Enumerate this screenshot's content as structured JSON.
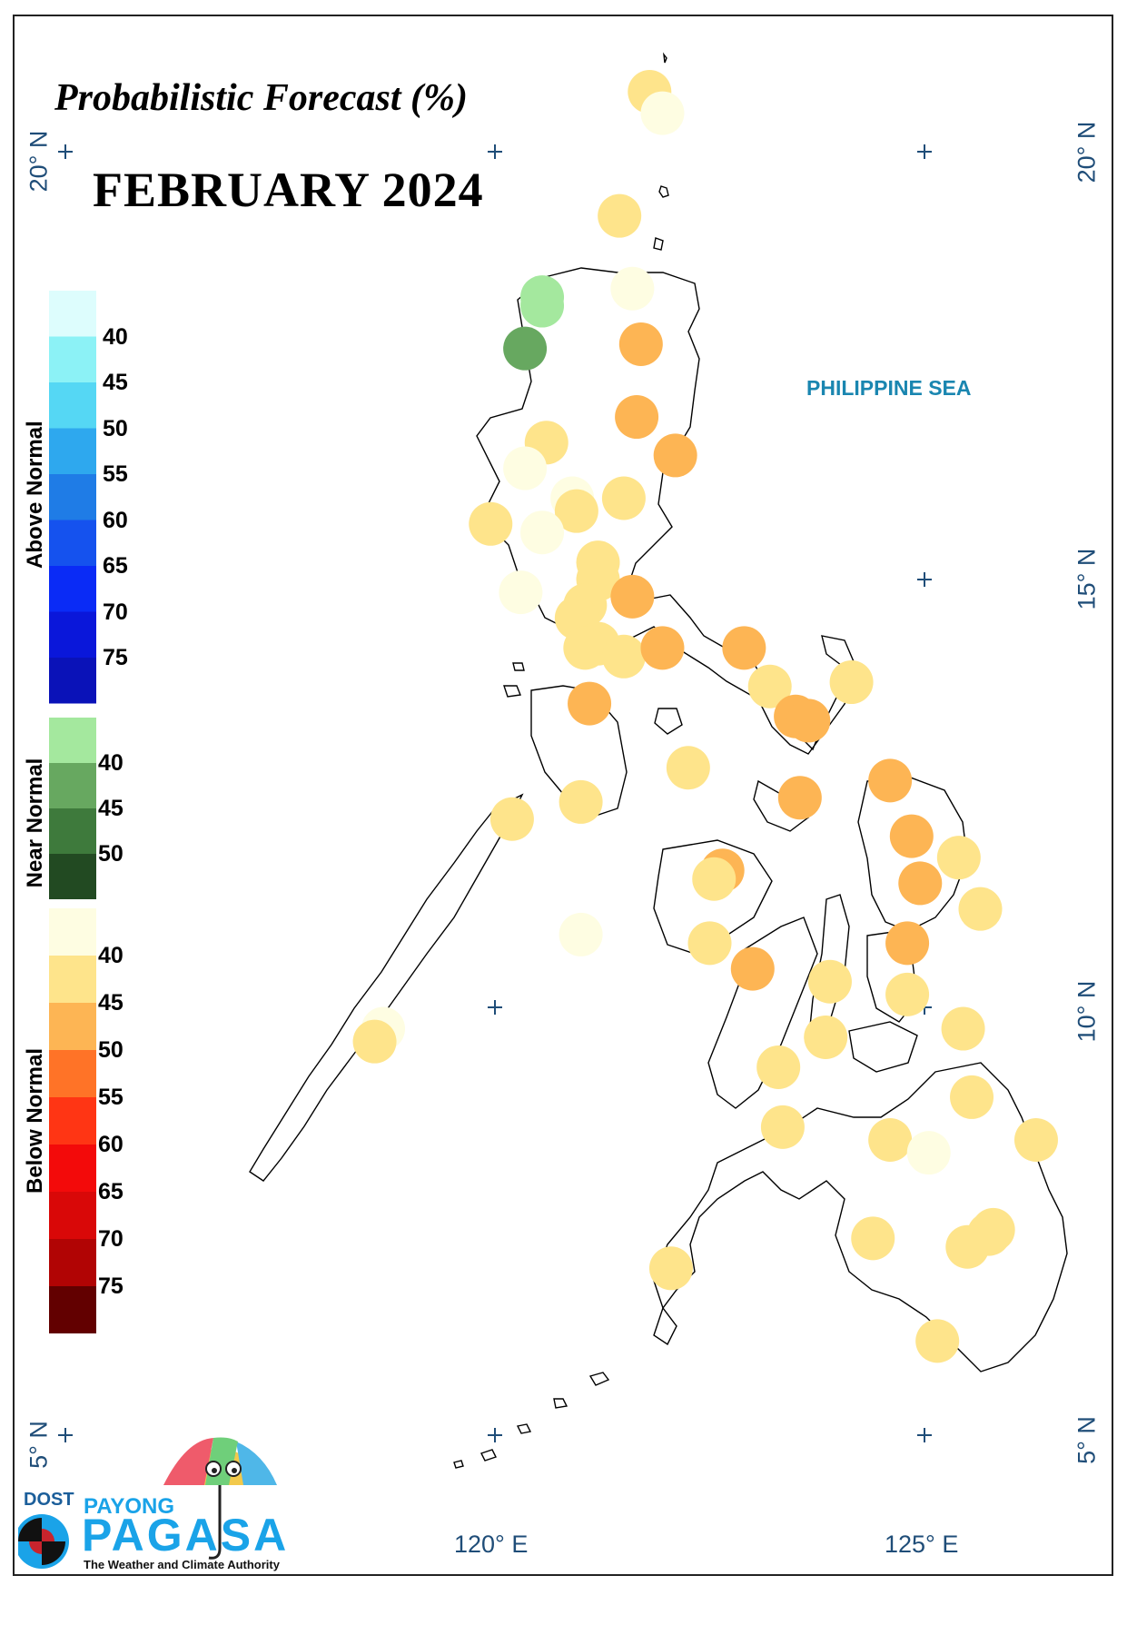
{
  "title": "Probabilistic Forecast (%)",
  "month": "FEBRUARY 2024",
  "sea_label": "PHILIPPINE SEA",
  "lat_labels": {
    "n20": "20° N",
    "n15": "15° N",
    "n10": "10° N",
    "n5": "5° N"
  },
  "lon_labels": {
    "e120": "120° E",
    "e125": "125° E"
  },
  "legend": {
    "above": {
      "title": "Above Normal",
      "ticks": [
        "40",
        "45",
        "50",
        "55",
        "60",
        "65",
        "70",
        "75"
      ],
      "colors": [
        "#ddfdfd",
        "#8cf2f6",
        "#55d7f4",
        "#2ea8ee",
        "#1f7ce6",
        "#1552ee",
        "#0a2bf6",
        "#0a17da",
        "#0a12b8"
      ]
    },
    "near": {
      "title": "Near Normal",
      "ticks": [
        "40",
        "45",
        "50"
      ],
      "colors": [
        "#a4e89e",
        "#67a860",
        "#3e7a3c",
        "#224a22"
      ]
    },
    "below": {
      "title": "Below Normal",
      "ticks": [
        "40",
        "45",
        "50",
        "55",
        "60",
        "65",
        "70",
        "75"
      ],
      "colors": [
        "#fefde2",
        "#fee48b",
        "#fdb554",
        "#ff7327",
        "#ff3514",
        "#f30a0a",
        "#d90808",
        "#b10404",
        "#620000"
      ]
    }
  },
  "logo": {
    "dost": "DOST",
    "payong": "PAYONG",
    "pagasa": "PAGASA",
    "tagline": "The Weather and Climate Authority"
  },
  "category_colors": {
    "B40": "#fefde2",
    "B45": "#fee48b",
    "B50": "#fdb554",
    "N40": "#a4e89e",
    "N45": "#67a860"
  },
  "stations": [
    {
      "lat": 20.7,
      "lon": 121.8,
      "cat": "B45"
    },
    {
      "lat": 20.45,
      "lon": 121.95,
      "cat": "B40"
    },
    {
      "lat": 19.25,
      "lon": 121.45,
      "cat": "B45"
    },
    {
      "lat": 18.4,
      "lon": 121.6,
      "cat": "B40"
    },
    {
      "lat": 18.3,
      "lon": 120.55,
      "cat": "N40"
    },
    {
      "lat": 18.2,
      "lon": 120.55,
      "cat": "N40"
    },
    {
      "lat": 17.7,
      "lon": 120.35,
      "cat": "N45"
    },
    {
      "lat": 17.75,
      "lon": 121.7,
      "cat": "B50"
    },
    {
      "lat": 16.9,
      "lon": 121.65,
      "cat": "B50"
    },
    {
      "lat": 16.6,
      "lon": 120.6,
      "cat": "B45"
    },
    {
      "lat": 16.45,
      "lon": 122.1,
      "cat": "B50"
    },
    {
      "lat": 16.3,
      "lon": 120.35,
      "cat": "B40"
    },
    {
      "lat": 15.95,
      "lon": 120.9,
      "cat": "B40"
    },
    {
      "lat": 15.95,
      "lon": 121.5,
      "cat": "B45"
    },
    {
      "lat": 15.8,
      "lon": 120.95,
      "cat": "B45"
    },
    {
      "lat": 15.65,
      "lon": 119.95,
      "cat": "B45"
    },
    {
      "lat": 15.55,
      "lon": 120.55,
      "cat": "B40"
    },
    {
      "lat": 15.2,
      "lon": 121.2,
      "cat": "B45"
    },
    {
      "lat": 15.0,
      "lon": 121.2,
      "cat": "B45"
    },
    {
      "lat": 14.8,
      "lon": 121.6,
      "cat": "B50"
    },
    {
      "lat": 14.85,
      "lon": 120.3,
      "cat": "B40"
    },
    {
      "lat": 14.7,
      "lon": 121.05,
      "cat": "B45"
    },
    {
      "lat": 14.55,
      "lon": 120.95,
      "cat": "B45"
    },
    {
      "lat": 14.25,
      "lon": 121.2,
      "cat": "B45"
    },
    {
      "lat": 14.2,
      "lon": 121.05,
      "cat": "B45"
    },
    {
      "lat": 14.1,
      "lon": 121.5,
      "cat": "B45"
    },
    {
      "lat": 14.2,
      "lon": 121.95,
      "cat": "B50"
    },
    {
      "lat": 14.2,
      "lon": 122.9,
      "cat": "B50"
    },
    {
      "lat": 13.75,
      "lon": 123.2,
      "cat": "B45"
    },
    {
      "lat": 13.8,
      "lon": 124.15,
      "cat": "B45"
    },
    {
      "lat": 13.4,
      "lon": 123.5,
      "cat": "B50"
    },
    {
      "lat": 13.35,
      "lon": 123.65,
      "cat": "B50"
    },
    {
      "lat": 13.55,
      "lon": 121.1,
      "cat": "B50"
    },
    {
      "lat": 12.8,
      "lon": 122.25,
      "cat": "B45"
    },
    {
      "lat": 12.65,
      "lon": 124.6,
      "cat": "B50"
    },
    {
      "lat": 12.45,
      "lon": 123.55,
      "cat": "B50"
    },
    {
      "lat": 12.4,
      "lon": 121.0,
      "cat": "B45"
    },
    {
      "lat": 12.2,
      "lon": 120.2,
      "cat": "B45"
    },
    {
      "lat": 12.0,
      "lon": 124.85,
      "cat": "B50"
    },
    {
      "lat": 11.75,
      "lon": 125.4,
      "cat": "B45"
    },
    {
      "lat": 11.6,
      "lon": 122.65,
      "cat": "B50"
    },
    {
      "lat": 11.5,
      "lon": 122.55,
      "cat": "B45"
    },
    {
      "lat": 11.45,
      "lon": 124.95,
      "cat": "B50"
    },
    {
      "lat": 11.15,
      "lon": 125.65,
      "cat": "B45"
    },
    {
      "lat": 10.85,
      "lon": 121.0,
      "cat": "B40"
    },
    {
      "lat": 10.75,
      "lon": 122.5,
      "cat": "B45"
    },
    {
      "lat": 10.75,
      "lon": 124.8,
      "cat": "B50"
    },
    {
      "lat": 10.45,
      "lon": 123.0,
      "cat": "B50"
    },
    {
      "lat": 10.3,
      "lon": 123.9,
      "cat": "B45"
    },
    {
      "lat": 10.15,
      "lon": 124.8,
      "cat": "B45"
    },
    {
      "lat": 9.75,
      "lon": 125.45,
      "cat": "B45"
    },
    {
      "lat": 9.75,
      "lon": 118.7,
      "cat": "B40"
    },
    {
      "lat": 9.6,
      "lon": 118.6,
      "cat": "B45"
    },
    {
      "lat": 9.65,
      "lon": 123.85,
      "cat": "B45"
    },
    {
      "lat": 9.3,
      "lon": 123.3,
      "cat": "B45"
    },
    {
      "lat": 8.95,
      "lon": 125.55,
      "cat": "B45"
    },
    {
      "lat": 8.6,
      "lon": 123.35,
      "cat": "B45"
    },
    {
      "lat": 8.45,
      "lon": 124.6,
      "cat": "B45"
    },
    {
      "lat": 8.3,
      "lon": 125.05,
      "cat": "B40"
    },
    {
      "lat": 8.45,
      "lon": 126.3,
      "cat": "B45"
    },
    {
      "lat": 7.4,
      "lon": 125.8,
      "cat": "B45"
    },
    {
      "lat": 7.35,
      "lon": 125.75,
      "cat": "B45"
    },
    {
      "lat": 7.2,
      "lon": 125.5,
      "cat": "B45"
    },
    {
      "lat": 7.3,
      "lon": 124.4,
      "cat": "B45"
    },
    {
      "lat": 6.95,
      "lon": 122.05,
      "cat": "B45"
    },
    {
      "lat": 6.1,
      "lon": 125.15,
      "cat": "B45"
    }
  ]
}
